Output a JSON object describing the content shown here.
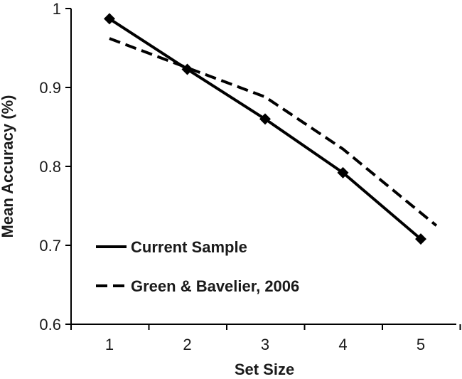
{
  "chart_data": {
    "type": "line",
    "x": [
      1,
      2,
      3,
      4,
      5
    ],
    "xlabel": "Set Size",
    "ylabel": "Mean Accuracy (%)",
    "ylim": [
      0.6,
      1.0
    ],
    "y_ticks": [
      "0.6",
      "0.7",
      "0.8",
      "0.9",
      "1"
    ],
    "x_ticks": [
      "1",
      "2",
      "3",
      "4",
      "5"
    ],
    "grid": false,
    "legend_position": "bottom-left",
    "series": [
      {
        "name": "Current Sample",
        "style": "solid",
        "marker": "diamond",
        "color": "#000000",
        "x": [
          1,
          2,
          3,
          4,
          5
        ],
        "values": [
          0.987,
          0.923,
          0.86,
          0.792,
          0.708
        ]
      },
      {
        "name": "Green & Bavelier, 2006",
        "style": "dashed",
        "marker": "none",
        "color": "#000000",
        "x": [
          1,
          2,
          3,
          4,
          5.2
        ],
        "values": [
          0.962,
          0.925,
          0.888,
          0.822,
          0.725
        ]
      }
    ]
  }
}
